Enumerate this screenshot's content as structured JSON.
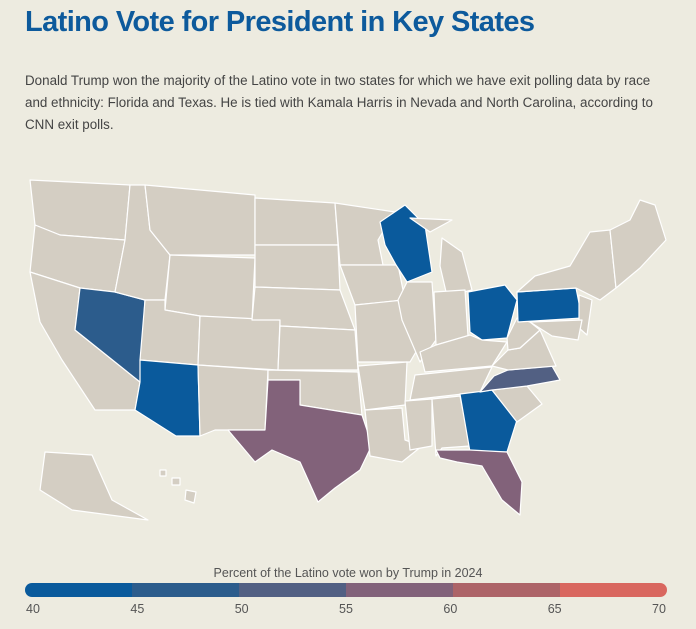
{
  "title": "Latino Vote for President in Key States",
  "description": "Donald Trump won the majority of the Latino vote in two states for which we have exit polling data by race and ethnicity: Florida and Texas. He is tied with Kamala Harris in Nevada and North Carolina, according to CNN exit polls.",
  "legend": {
    "title": "Percent of the Latino vote won by Trump in 2024",
    "ticks": [
      "40",
      "45",
      "50",
      "55",
      "60",
      "65",
      "70"
    ],
    "bins": [
      {
        "range": "40-45",
        "color": "#0a5a9c"
      },
      {
        "range": "45-50",
        "color": "#2c5c8c"
      },
      {
        "range": "50-55",
        "color": "#526083"
      },
      {
        "range": "55-60",
        "color": "#82627a"
      },
      {
        "range": "60-65",
        "color": "#ad6468"
      },
      {
        "range": "65-70",
        "color": "#d9675f"
      }
    ]
  },
  "colors": {
    "no_data": "#d4cec3",
    "background": "#edebe0",
    "title": "#0d5a9c"
  },
  "states_with_data": {
    "AZ": "40-45",
    "WI": "40-45",
    "PA": "40-45",
    "OH": "40-45",
    "GA": "40-45",
    "NV": "45-50",
    "NC": "50-55",
    "TX": "55-60",
    "FL": "55-60"
  }
}
